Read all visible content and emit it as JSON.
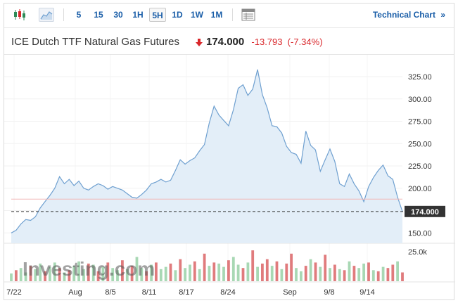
{
  "toolbar": {
    "chart_type_icons": [
      "candlestick-icon",
      "area-chart-icon"
    ],
    "timeframes": [
      "5",
      "15",
      "30",
      "1H",
      "5H",
      "1D",
      "1W",
      "1M"
    ],
    "active_timeframe": "5H",
    "table_icon": "table-icon",
    "technical_chart_label": "Technical Chart",
    "technical_chart_arrow": "»"
  },
  "header": {
    "title": "ICE Dutch TTF Natural Gas Futures",
    "price": "174.000",
    "change": "-13.793",
    "change_pct": "(-7.34%)",
    "direction_icon": "down-arrow-icon"
  },
  "colors": {
    "accent": "#1a5ea8",
    "down": "#d9262a",
    "line": "#6fa0d0",
    "fill": "#e3eef8",
    "volume_up": "#a8d8b4",
    "volume_down": "#e07b7d",
    "prev_close_line": "#f2b8b8"
  },
  "watermark": "Investing.com",
  "chart_data": {
    "type": "area",
    "x_labels": [
      "7/22",
      "Aug",
      "8/5",
      "8/11",
      "8/17",
      "8/24",
      "Sep",
      "9/8",
      "9/14"
    ],
    "y_ticks": [
      150,
      175,
      200,
      225,
      250,
      275,
      300,
      325
    ],
    "y_tick_labels": [
      "150.00",
      "175.00",
      "200.00",
      "225.00",
      "250.00",
      "275.00",
      "300.00",
      "325.00"
    ],
    "ylim": [
      140,
      340
    ],
    "last_value_label": "174.000",
    "last_value": 174.0,
    "prev_close": 187.8,
    "values": [
      150,
      153,
      160,
      165,
      164,
      168,
      178,
      185,
      192,
      200,
      213,
      205,
      210,
      203,
      208,
      200,
      198,
      202,
      205,
      203,
      199,
      202,
      200,
      198,
      194,
      190,
      189,
      193,
      198,
      205,
      207,
      210,
      207,
      209,
      220,
      232,
      227,
      231,
      234,
      242,
      249,
      273,
      292,
      282,
      276,
      270,
      288,
      312,
      316,
      304,
      311,
      333,
      305,
      290,
      270,
      269,
      262,
      247,
      240,
      238,
      228,
      264,
      248,
      243,
      219,
      232,
      244,
      230,
      205,
      202,
      216,
      205,
      197,
      185,
      202,
      212,
      220,
      226,
      214,
      210,
      190,
      174
    ],
    "volume_label": "25.0k",
    "volume_max": 30,
    "volumes": [
      7,
      10,
      12,
      8,
      14,
      11,
      16,
      9,
      13,
      17,
      12,
      8,
      10,
      14,
      18,
      11,
      16,
      15,
      9,
      13,
      17,
      12,
      10,
      19,
      11,
      14,
      22,
      12,
      9,
      15,
      17,
      11,
      13,
      16,
      10,
      20,
      12,
      15,
      18,
      11,
      25,
      14,
      17,
      16,
      13,
      19,
      22,
      15,
      12,
      17,
      28,
      13,
      16,
      20,
      14,
      18,
      11,
      16,
      25,
      12,
      9,
      14,
      20,
      17,
      13,
      24,
      12,
      15,
      11,
      10,
      18,
      14,
      12,
      16,
      17,
      10,
      9,
      13,
      12,
      15,
      18,
      8
    ],
    "volume_up": [
      true,
      false,
      true,
      true,
      false,
      true,
      true,
      false,
      true,
      true,
      false,
      true,
      false,
      true,
      true,
      true,
      false,
      true,
      false,
      true,
      false,
      true,
      true,
      false,
      true,
      false,
      true,
      true,
      false,
      true,
      false,
      true,
      true,
      false,
      true,
      false,
      true,
      true,
      false,
      true,
      false,
      true,
      false,
      true,
      true,
      false,
      true,
      true,
      false,
      true,
      false,
      true,
      false,
      false,
      true,
      false,
      true,
      false,
      false,
      true,
      true,
      false,
      true,
      false,
      true,
      false,
      true,
      false,
      true,
      false,
      true,
      false,
      true,
      true,
      false,
      true,
      false,
      true,
      false,
      false,
      true,
      false
    ]
  }
}
